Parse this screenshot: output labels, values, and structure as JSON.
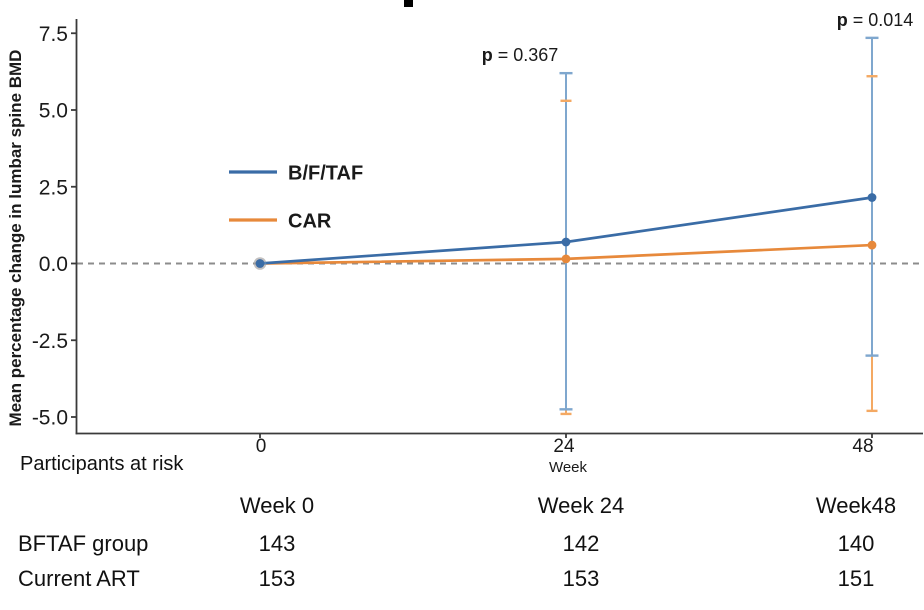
{
  "chart_data": {
    "type": "line",
    "x": [
      0,
      24,
      48
    ],
    "x_tick_labels": [
      "0",
      "24",
      "48"
    ],
    "xlabel": "Week",
    "ylabel": "Mean percentage change in lumbar spine BMD",
    "y_ticks": [
      7.5,
      5.0,
      2.5,
      0.0,
      -2.5,
      -5.0
    ],
    "y_tick_labels": [
      "7.5",
      "5.0",
      "2.5",
      "0.0",
      "-2.5",
      "-5.0"
    ],
    "ylim": [
      -5.6,
      8.0
    ],
    "grid": false,
    "zero_reference_line": true,
    "zero_line_color": "#8c8c8c",
    "axis_color": "#3a3a3a",
    "legend_position": "upper-left-inside",
    "series": [
      {
        "name": "B/F/TAF",
        "color": "#3a6ca6",
        "error_color": "#7fa7ce",
        "values": [
          0.0,
          0.7,
          2.15
        ],
        "ci_low": [
          null,
          -4.75,
          -3.0
        ],
        "ci_high": [
          null,
          6.2,
          7.35
        ]
      },
      {
        "name": "CAR",
        "color": "#e7893b",
        "error_color": "#f4a963",
        "values": [
          0.0,
          0.15,
          0.6
        ],
        "ci_low": [
          null,
          -4.9,
          -4.8
        ],
        "ci_high": [
          null,
          5.3,
          6.1
        ]
      }
    ],
    "annotations": [
      {
        "bold": "p",
        "text": " = 0.367",
        "week": 24,
        "align_dx": -46
      },
      {
        "bold": "p",
        "text": " = 0.014",
        "week": 48,
        "align_dx": 3
      }
    ]
  },
  "at_risk": {
    "title": "Participants at risk",
    "columns": [
      "Week 0",
      "Week 24",
      "Week48"
    ],
    "rows": [
      {
        "label": "BFTAF group",
        "values": [
          "143",
          "142",
          "140"
        ]
      },
      {
        "label": "Current ART",
        "values": [
          "153",
          "153",
          "151"
        ]
      }
    ]
  }
}
